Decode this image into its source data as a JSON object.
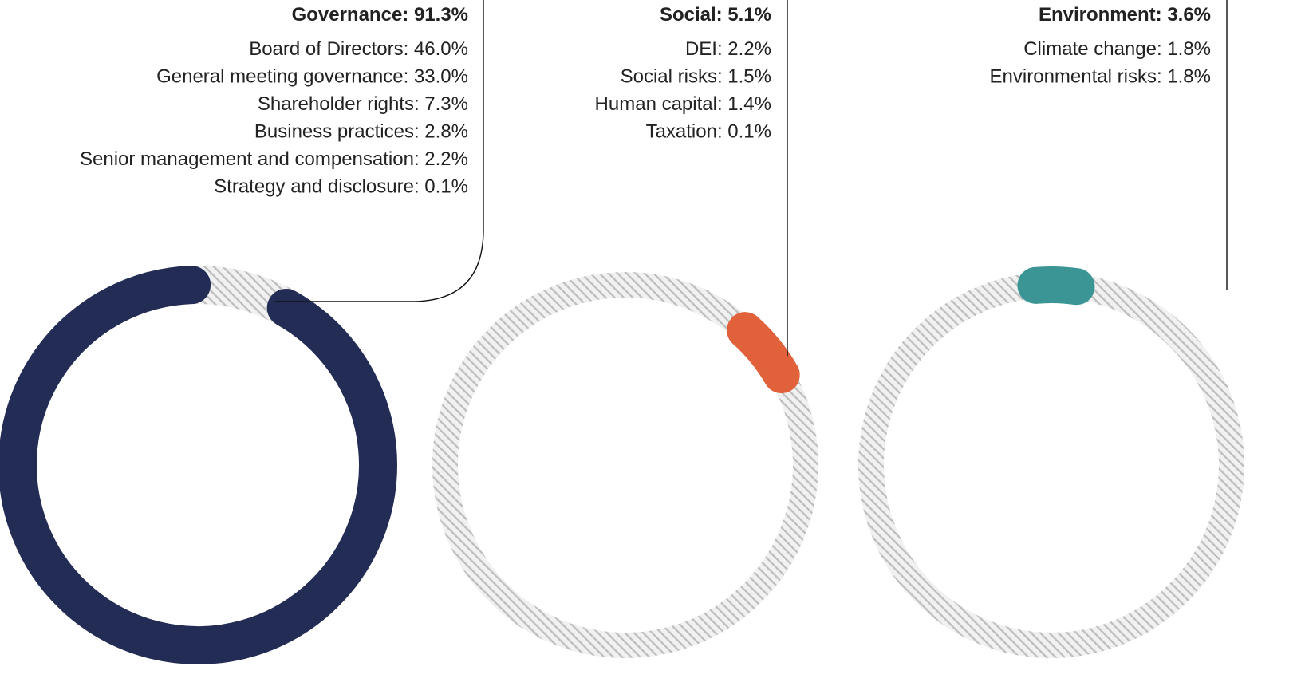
{
  "chart_data": [
    {
      "type": "donut",
      "title": "Governance: 91.3%",
      "value": 91.3,
      "unit": "%",
      "color": "#232c54",
      "breakdown": [
        {
          "label": "Board of Directors: 46.0%",
          "value": 46.0
        },
        {
          "label": "General meeting governance: 33.0%",
          "value": 33.0
        },
        {
          "label": "Shareholder rights: 7.3%",
          "value": 7.3
        },
        {
          "label": "Business practices: 2.8%",
          "value": 2.8
        },
        {
          "label": "Senior management and compensation: 2.2%",
          "value": 2.2
        },
        {
          "label": "Strategy and disclosure: 0.1%",
          "value": 0.1
        }
      ]
    },
    {
      "type": "donut",
      "title": "Social: 5.1%",
      "value": 5.1,
      "unit": "%",
      "color": "#e0613a",
      "breakdown": [
        {
          "label": "DEI: 2.2%",
          "value": 2.2
        },
        {
          "label": "Social risks: 1.5%",
          "value": 1.5
        },
        {
          "label": "Human capital: 1.4%",
          "value": 1.4
        },
        {
          "label": "Taxation: 0.1%",
          "value": 0.1
        }
      ]
    },
    {
      "type": "donut",
      "title": "Environment: 3.6%",
      "value": 3.6,
      "unit": "%",
      "color": "#3a9594",
      "breakdown": [
        {
          "label": "Climate change: 1.8%",
          "value": 1.8
        },
        {
          "label": "Environmental risks: 1.8%",
          "value": 1.8
        }
      ]
    }
  ],
  "colors": {
    "track": "#bdbdbd",
    "leader_line": "#111111",
    "text": "#222222"
  }
}
